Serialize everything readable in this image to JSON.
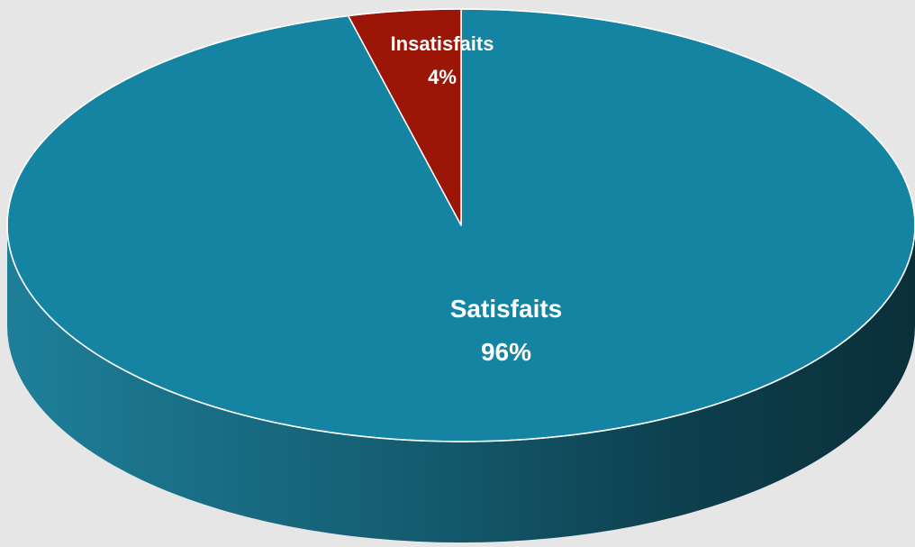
{
  "chart_data": {
    "type": "pie",
    "title": "",
    "slices": [
      {
        "label": "Satisfaits",
        "value": 96,
        "value_label": "96%",
        "color": "#1584a2"
      },
      {
        "label": "Insatisfaits",
        "value": 4,
        "value_label": "4%",
        "color": "#9b1606"
      }
    ],
    "style": "3d",
    "background": "#e6e6e6",
    "label_color": "#ffffff"
  }
}
